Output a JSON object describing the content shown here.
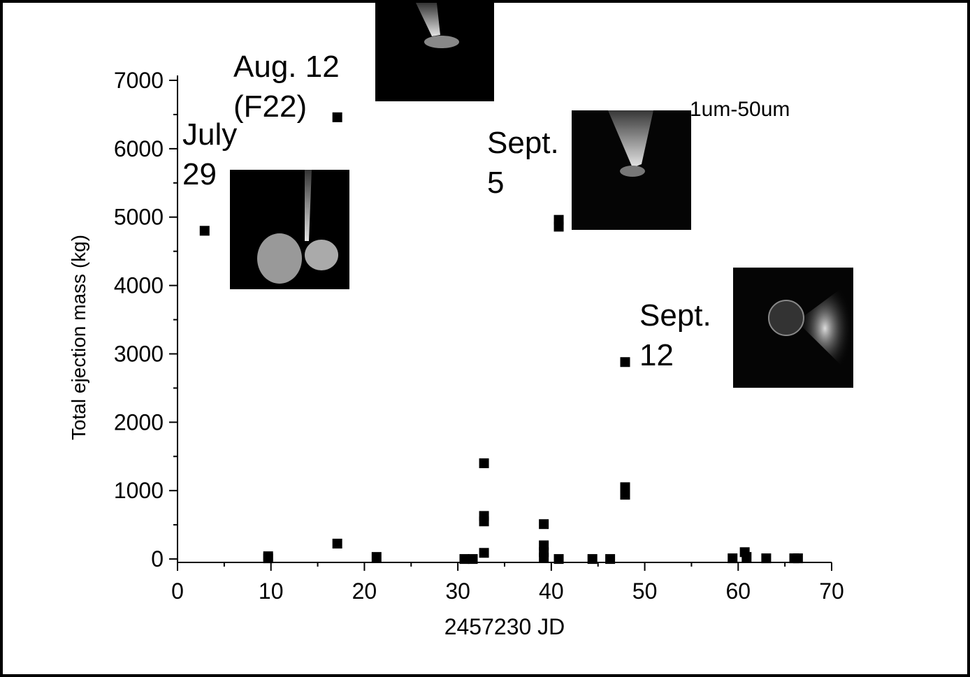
{
  "chart_data": {
    "type": "scatter",
    "xlabel": "2457230 JD",
    "ylabel": "Total ejection mass (kg)",
    "x": [
      2.9,
      17.1,
      17.1,
      9.7,
      9.7,
      21.3,
      30.7,
      31.6,
      32.8,
      32.8,
      32.8,
      32.8,
      39.2,
      39.2,
      39.2,
      39.2,
      40.8,
      40.8,
      40.8,
      47.9,
      47.9,
      47.9,
      44.4,
      46.3,
      59.4,
      60.7,
      60.9,
      63.0,
      66.0,
      66.4
    ],
    "values": [
      4800,
      6460,
      225,
      40,
      10,
      30,
      0,
      0,
      1400,
      630,
      550,
      90,
      510,
      200,
      100,
      20,
      0,
      4960,
      4860,
      2880,
      1050,
      940,
      0,
      0,
      10,
      100,
      30,
      10,
      10,
      10
    ],
    "color": "#000000",
    "xlim": [
      0,
      70
    ],
    "xticks": [
      0,
      10,
      20,
      30,
      40,
      50,
      60,
      70
    ],
    "ylim": [
      -50,
      7000
    ],
    "yticks": [
      0,
      1000,
      2000,
      3000,
      4000,
      5000,
      6000,
      7000
    ],
    "annotations": [
      {
        "lines": [
          "Aug. 12",
          "(F22)"
        ]
      },
      {
        "lines": [
          "July",
          "29"
        ]
      },
      {
        "lines": [
          "Sept.",
          "5"
        ]
      },
      {
        "lines": [
          "Sept.",
          "12"
        ]
      },
      {
        "lines": [
          "1um-50um"
        ]
      }
    ]
  }
}
